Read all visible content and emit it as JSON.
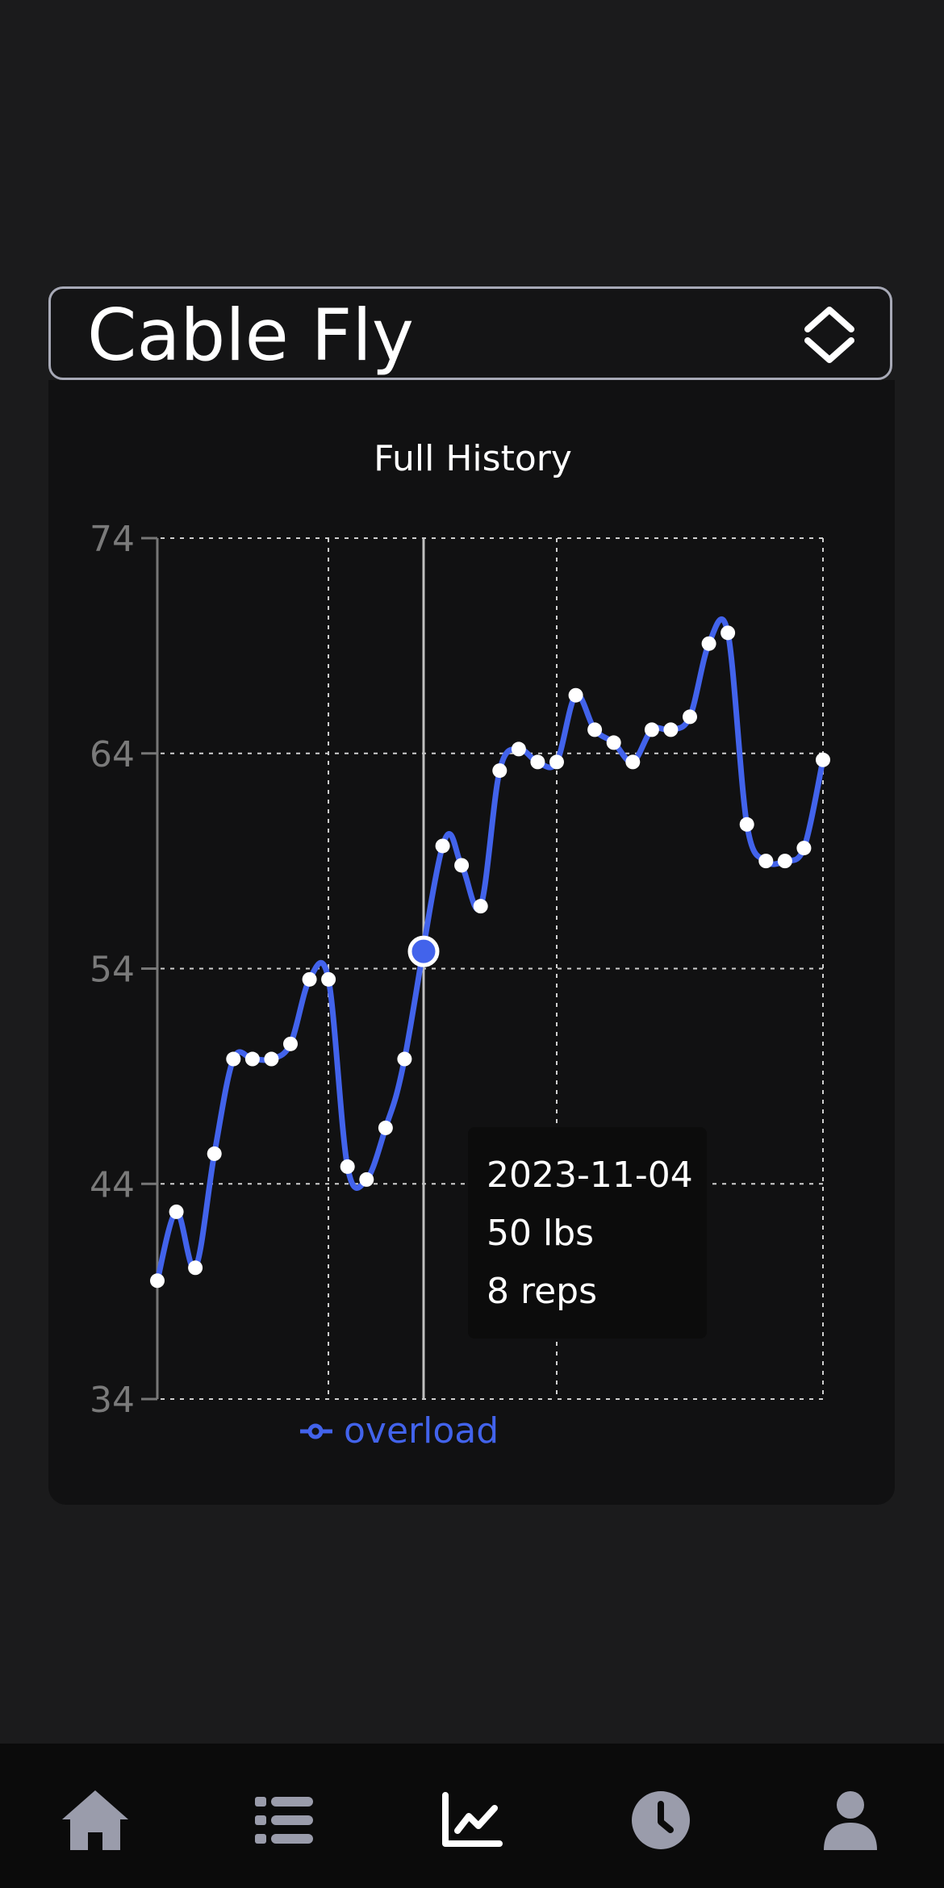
{
  "exercise_selector": {
    "value": "Cable Fly",
    "icon": "chevron-up-down-icon"
  },
  "chart_data": {
    "type": "line",
    "title": "Full History",
    "xlabel": "",
    "ylabel": "",
    "ylim": [
      34,
      74
    ],
    "yticks": [
      34,
      44,
      54,
      64,
      74
    ],
    "grid": true,
    "legend_placement": "bottom",
    "series": [
      {
        "name": "overload",
        "color": "#4263eb",
        "values": [
          39.5,
          42.7,
          40.1,
          45.4,
          49.8,
          49.8,
          49.8,
          50.5,
          53.5,
          53.5,
          44.8,
          44.2,
          46.6,
          49.8,
          59.7,
          58.8,
          56.9,
          63.2,
          64.2,
          63.6,
          63.6,
          66.7,
          65.1,
          64.5,
          63.6,
          65.1,
          65.1,
          65.7,
          69.1,
          69.6,
          60.7,
          59.0,
          59.0,
          59.6,
          63.7
        ],
        "x_positions": [
          0,
          0.0286,
          0.0571,
          0.0857,
          0.1143,
          0.1429,
          0.1714,
          0.2,
          0.2286,
          0.2571,
          0.2857,
          0.3143,
          0.3429,
          0.3714,
          0.4286,
          0.4571,
          0.4857,
          0.5143,
          0.5429,
          0.5714,
          0.6,
          0.6286,
          0.6571,
          0.6857,
          0.7143,
          0.7429,
          0.7714,
          0.8,
          0.8286,
          0.8571,
          0.8857,
          0.9143,
          0.9429,
          0.9714,
          1.0
        ]
      }
    ],
    "highlight_point": {
      "x_position": 0.4,
      "value": 54.8
    }
  },
  "tooltip": {
    "date": "2023-11-04",
    "weight": "50 lbs",
    "reps": "8 reps"
  },
  "colors": {
    "accent": "#4263eb",
    "background": "#1b1b1c",
    "card": "#111112",
    "tab_inactive": "#9a9cab",
    "tab_active": "#ffffff"
  },
  "tabbar": {
    "items": [
      {
        "name": "home",
        "icon": "home-icon",
        "active": false
      },
      {
        "name": "list",
        "icon": "list-icon",
        "active": false
      },
      {
        "name": "chart",
        "icon": "chart-icon",
        "active": true
      },
      {
        "name": "history",
        "icon": "clock-icon",
        "active": false
      },
      {
        "name": "profile",
        "icon": "user-icon",
        "active": false
      }
    ]
  }
}
